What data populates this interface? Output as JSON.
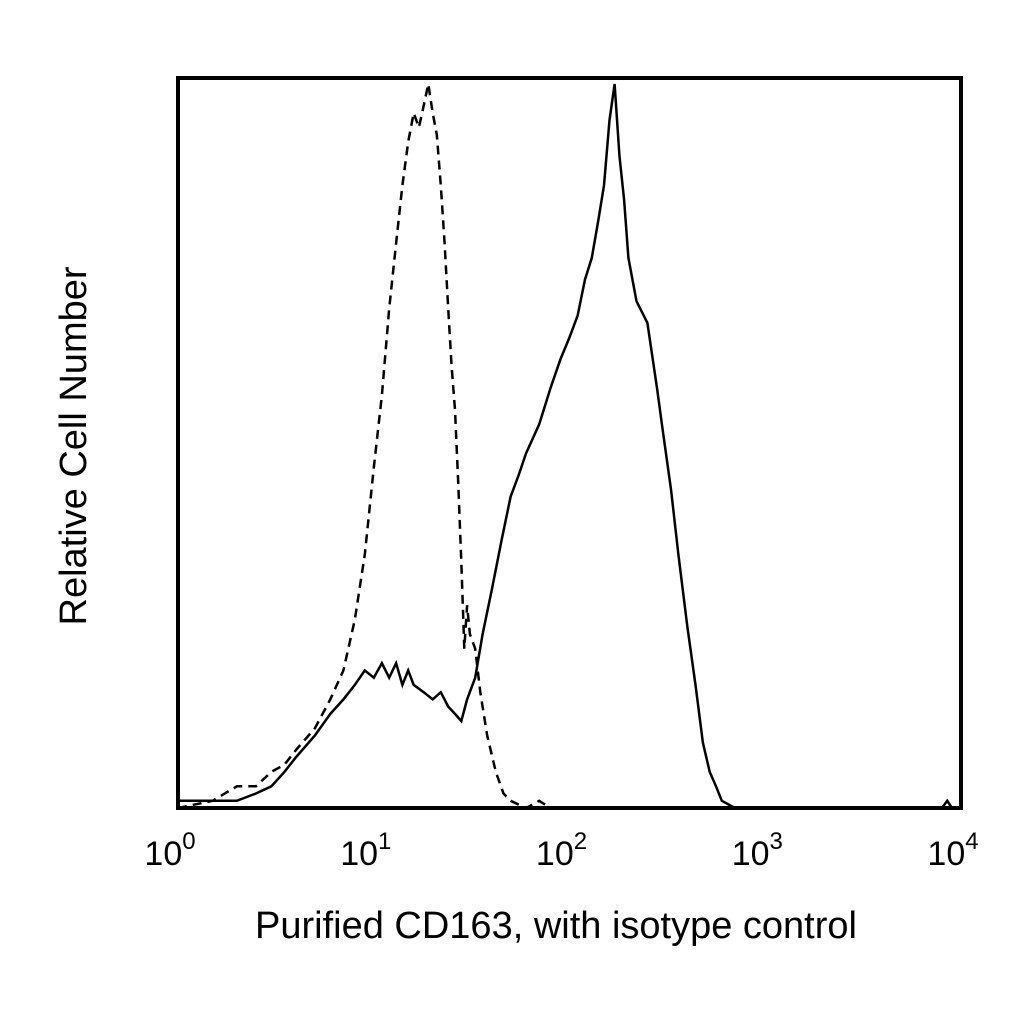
{
  "chart_data": {
    "type": "histogram",
    "xlabel": "Purified CD163, with isotype control",
    "ylabel": "Relative Cell Number",
    "x_scale": "log10",
    "xlim": [
      1,
      10000
    ],
    "ylim": [
      0,
      1
    ],
    "grid": false,
    "x_ticks": [
      {
        "value": 1,
        "base": "10",
        "exp": "0"
      },
      {
        "value": 10,
        "base": "10",
        "exp": "1"
      },
      {
        "value": 100,
        "base": "10",
        "exp": "2"
      },
      {
        "value": 1000,
        "base": "10",
        "exp": "3"
      },
      {
        "value": 10000,
        "base": "10",
        "exp": "4"
      }
    ],
    "series": [
      {
        "style": "dashed",
        "color": "#000000",
        "points": [
          [
            1.0,
            0.0
          ],
          [
            1.5,
            0.01
          ],
          [
            2.0,
            0.03
          ],
          [
            2.5,
            0.03
          ],
          [
            3.0,
            0.05
          ],
          [
            3.5,
            0.06
          ],
          [
            4.0,
            0.08
          ],
          [
            5.0,
            0.11
          ],
          [
            6.0,
            0.15
          ],
          [
            7.0,
            0.19
          ],
          [
            8.0,
            0.26
          ],
          [
            9.0,
            0.35
          ],
          [
            10.0,
            0.47
          ],
          [
            11.0,
            0.57
          ],
          [
            12.0,
            0.69
          ],
          [
            13.0,
            0.78
          ],
          [
            14.0,
            0.86
          ],
          [
            15.0,
            0.92
          ],
          [
            16.0,
            0.96
          ],
          [
            17.0,
            0.94
          ],
          [
            18.0,
            0.97
          ],
          [
            19.0,
            1.0
          ],
          [
            20.0,
            0.96
          ],
          [
            21.0,
            0.93
          ],
          [
            22.0,
            0.86
          ],
          [
            23.0,
            0.78
          ],
          [
            24.0,
            0.69
          ],
          [
            25.0,
            0.61
          ],
          [
            26.0,
            0.55
          ],
          [
            27.0,
            0.45
          ],
          [
            28.0,
            0.34
          ],
          [
            29.0,
            0.22
          ],
          [
            30.0,
            0.28
          ],
          [
            31.0,
            0.24
          ],
          [
            33.0,
            0.22
          ],
          [
            35.0,
            0.16
          ],
          [
            38.0,
            0.1
          ],
          [
            42.0,
            0.05
          ],
          [
            46.0,
            0.02
          ],
          [
            50.0,
            0.01
          ],
          [
            60.0,
            0.0
          ],
          [
            70.0,
            0.01
          ],
          [
            80.0,
            0.0
          ],
          [
            100.0,
            0.0
          ]
        ]
      },
      {
        "style": "solid",
        "color": "#000000",
        "points": [
          [
            1.0,
            0.01
          ],
          [
            1.5,
            0.01
          ],
          [
            2.0,
            0.01
          ],
          [
            2.5,
            0.02
          ],
          [
            3.0,
            0.03
          ],
          [
            3.5,
            0.05
          ],
          [
            4.0,
            0.07
          ],
          [
            5.0,
            0.1
          ],
          [
            6.0,
            0.13
          ],
          [
            7.0,
            0.15
          ],
          [
            8.0,
            0.17
          ],
          [
            9.0,
            0.19
          ],
          [
            10.0,
            0.18
          ],
          [
            11.0,
            0.2
          ],
          [
            12.0,
            0.18
          ],
          [
            13.0,
            0.2
          ],
          [
            14.0,
            0.17
          ],
          [
            15.0,
            0.19
          ],
          [
            16.0,
            0.17
          ],
          [
            18.0,
            0.16
          ],
          [
            20.0,
            0.15
          ],
          [
            22.0,
            0.16
          ],
          [
            24.0,
            0.14
          ],
          [
            26.0,
            0.13
          ],
          [
            28.0,
            0.12
          ],
          [
            30.0,
            0.15
          ],
          [
            33.0,
            0.18
          ],
          [
            36.0,
            0.24
          ],
          [
            40.0,
            0.3
          ],
          [
            45.0,
            0.37
          ],
          [
            50.0,
            0.43
          ],
          [
            55.0,
            0.46
          ],
          [
            60.0,
            0.49
          ],
          [
            70.0,
            0.53
          ],
          [
            80.0,
            0.58
          ],
          [
            90.0,
            0.62
          ],
          [
            100.0,
            0.65
          ],
          [
            110.0,
            0.68
          ],
          [
            120.0,
            0.73
          ],
          [
            130.0,
            0.76
          ],
          [
            140.0,
            0.81
          ],
          [
            150.0,
            0.86
          ],
          [
            160.0,
            0.95
          ],
          [
            170.0,
            1.0
          ],
          [
            180.0,
            0.9
          ],
          [
            190.0,
            0.84
          ],
          [
            200.0,
            0.76
          ],
          [
            220.0,
            0.7
          ],
          [
            250.0,
            0.67
          ],
          [
            280.0,
            0.58
          ],
          [
            300.0,
            0.52
          ],
          [
            330.0,
            0.44
          ],
          [
            360.0,
            0.35
          ],
          [
            400.0,
            0.25
          ],
          [
            440.0,
            0.17
          ],
          [
            480.0,
            0.09
          ],
          [
            520.0,
            0.05
          ],
          [
            560.0,
            0.03
          ],
          [
            600.0,
            0.01
          ],
          [
            700.0,
            0.0
          ],
          [
            1000.0,
            0.0
          ],
          [
            3000.0,
            0.0
          ],
          [
            8000.0,
            0.0
          ],
          [
            8500.0,
            0.01
          ],
          [
            9000.0,
            0.0
          ],
          [
            10000.0,
            0.0
          ]
        ]
      }
    ]
  }
}
